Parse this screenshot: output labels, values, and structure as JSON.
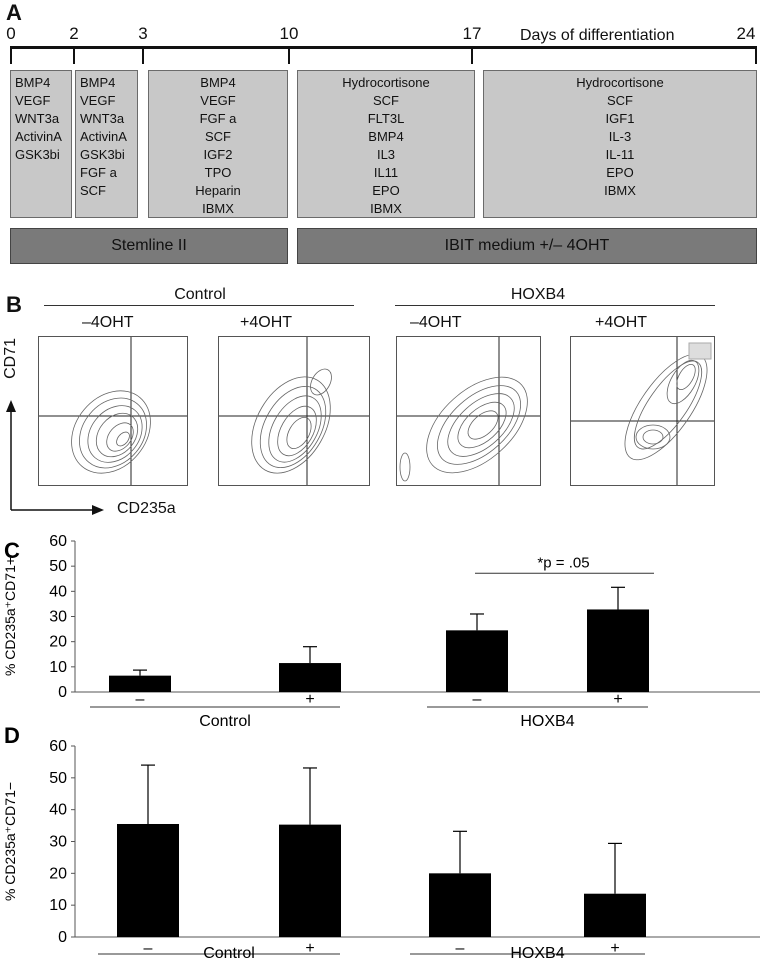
{
  "panel_a": {
    "letter": "A",
    "axis_title": "Days of differentiation",
    "ticks": [
      "0",
      "2",
      "3",
      "10",
      "17",
      "24"
    ],
    "stages": [
      {
        "factors": [
          "BMP4",
          "VEGF",
          "WNT3a",
          "ActivinA",
          "GSK3bi"
        ]
      },
      {
        "factors": [
          "BMP4",
          "VEGF",
          "WNT3a",
          "ActivinA",
          "GSK3bi",
          "FGF a",
          "SCF"
        ]
      },
      {
        "factors": [
          "BMP4",
          "VEGF",
          "FGF a",
          "SCF",
          "IGF2",
          "TPO",
          "Heparin",
          "IBMX"
        ]
      },
      {
        "factors": [
          "Hydrocortisone",
          "SCF",
          "FLT3L",
          "BMP4",
          "IL3",
          "IL11",
          "EPO",
          "IBMX"
        ]
      },
      {
        "factors": [
          "Hydrocortisone",
          "SCF",
          "IGF1",
          "IL-3",
          "IL-11",
          "EPO",
          "IBMX"
        ]
      }
    ],
    "media": [
      "Stemline II",
      "IBIT medium +/– 4OHT"
    ]
  },
  "panel_b": {
    "letter": "B",
    "groups": [
      "Control",
      "HOXB4"
    ],
    "plots": [
      "–4OHT",
      "+4OHT",
      "–4OHT",
      "+4OHT"
    ],
    "y_axis": "CD71",
    "x_axis": "CD235a"
  },
  "chart_data": [
    {
      "type": "bar",
      "panel": "C",
      "ylabel": "% CD235a⁺CD71+",
      "ylim": [
        0,
        60
      ],
      "yticks": [
        0,
        10,
        20,
        30,
        40,
        50,
        60
      ],
      "categories": [
        "–",
        "+",
        "–",
        "+"
      ],
      "groups": [
        "Control",
        "HOXB4"
      ],
      "values": [
        6.5,
        11.5,
        24.5,
        32.8
      ],
      "errors": [
        2.2,
        6.5,
        6.5,
        8.8
      ],
      "annotation": "*p = .05"
    },
    {
      "type": "bar",
      "panel": "D",
      "ylabel": "% CD235a⁺CD71−",
      "ylim": [
        0,
        60
      ],
      "yticks": [
        0,
        10,
        20,
        30,
        40,
        50,
        60
      ],
      "categories": [
        "–",
        "+",
        "–",
        "+"
      ],
      "groups": [
        "Control",
        "HOXB4"
      ],
      "values": [
        35.5,
        35.3,
        20,
        13.6
      ],
      "errors": [
        18.5,
        17.8,
        13.2,
        15.8
      ]
    }
  ]
}
